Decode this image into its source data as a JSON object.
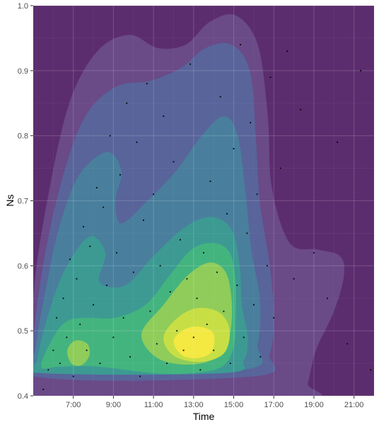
{
  "chart_data": {
    "type": "density-contour",
    "xlabel": "Time",
    "ylabel": "Ns",
    "x_range": [
      "05:00",
      "22:00"
    ],
    "y_range": [
      0.4,
      1.0
    ],
    "x_ticks": [
      "7:00",
      "9:00",
      "11:00",
      "13:00",
      "15:00",
      "17:00",
      "19:00",
      "21:00"
    ],
    "y_ticks": [
      "0.4",
      "0.5",
      "0.6",
      "0.7",
      "0.8",
      "0.9",
      "1.0"
    ],
    "grid": true,
    "legend": "none",
    "fill_levels": [
      {
        "level": 1,
        "color": "#5c2d6e"
      },
      {
        "level": 2,
        "color": "#6a4a87"
      },
      {
        "level": 3,
        "color": "#58649a"
      },
      {
        "level": 4,
        "color": "#497f9c"
      },
      {
        "level": 5,
        "color": "#3c9a93"
      },
      {
        "level": 6,
        "color": "#44b47f"
      },
      {
        "level": 7,
        "color": "#8fcc5a"
      },
      {
        "level": 8,
        "color": "#c7df45"
      },
      {
        "level": 9,
        "color": "#f4e843"
      }
    ],
    "density_peaks": [
      {
        "time": "13:15",
        "ns": 0.48
      },
      {
        "time": "07:15",
        "ns": 0.465
      }
    ],
    "points": [
      {
        "time": "05:30",
        "ns": 0.41
      },
      {
        "time": "05:45",
        "ns": 0.44
      },
      {
        "time": "06:00",
        "ns": 0.47
      },
      {
        "time": "06:10",
        "ns": 0.52
      },
      {
        "time": "06:20",
        "ns": 0.45
      },
      {
        "time": "06:30",
        "ns": 0.55
      },
      {
        "time": "06:40",
        "ns": 0.49
      },
      {
        "time": "06:50",
        "ns": 0.61
      },
      {
        "time": "07:00",
        "ns": 0.43
      },
      {
        "time": "07:10",
        "ns": 0.58
      },
      {
        "time": "07:20",
        "ns": 0.51
      },
      {
        "time": "07:30",
        "ns": 0.66
      },
      {
        "time": "07:40",
        "ns": 0.47
      },
      {
        "time": "07:50",
        "ns": 0.63
      },
      {
        "time": "08:00",
        "ns": 0.54
      },
      {
        "time": "08:10",
        "ns": 0.72
      },
      {
        "time": "08:20",
        "ns": 0.45
      },
      {
        "time": "08:30",
        "ns": 0.69
      },
      {
        "time": "08:40",
        "ns": 0.57
      },
      {
        "time": "08:50",
        "ns": 0.8
      },
      {
        "time": "09:00",
        "ns": 0.49
      },
      {
        "time": "09:10",
        "ns": 0.62
      },
      {
        "time": "09:20",
        "ns": 0.74
      },
      {
        "time": "09:30",
        "ns": 0.52
      },
      {
        "time": "09:40",
        "ns": 0.85
      },
      {
        "time": "09:50",
        "ns": 0.46
      },
      {
        "time": "10:00",
        "ns": 0.59
      },
      {
        "time": "10:10",
        "ns": 0.79
      },
      {
        "time": "10:20",
        "ns": 0.43
      },
      {
        "time": "10:30",
        "ns": 0.67
      },
      {
        "time": "10:40",
        "ns": 0.88
      },
      {
        "time": "10:50",
        "ns": 0.53
      },
      {
        "time": "11:00",
        "ns": 0.71
      },
      {
        "time": "11:10",
        "ns": 0.48
      },
      {
        "time": "11:20",
        "ns": 0.6
      },
      {
        "time": "11:30",
        "ns": 0.83
      },
      {
        "time": "11:40",
        "ns": 0.45
      },
      {
        "time": "11:50",
        "ns": 0.56
      },
      {
        "time": "12:00",
        "ns": 0.76
      },
      {
        "time": "12:10",
        "ns": 0.5
      },
      {
        "time": "12:20",
        "ns": 0.64
      },
      {
        "time": "12:30",
        "ns": 0.47
      },
      {
        "time": "12:40",
        "ns": 0.58
      },
      {
        "time": "12:50",
        "ns": 0.91
      },
      {
        "time": "13:00",
        "ns": 0.49
      },
      {
        "time": "13:10",
        "ns": 0.55
      },
      {
        "time": "13:20",
        "ns": 0.44
      },
      {
        "time": "13:30",
        "ns": 0.62
      },
      {
        "time": "13:40",
        "ns": 0.51
      },
      {
        "time": "13:50",
        "ns": 0.73
      },
      {
        "time": "14:00",
        "ns": 0.47
      },
      {
        "time": "14:10",
        "ns": 0.59
      },
      {
        "time": "14:20",
        "ns": 0.86
      },
      {
        "time": "14:30",
        "ns": 0.53
      },
      {
        "time": "14:40",
        "ns": 0.68
      },
      {
        "time": "14:50",
        "ns": 0.45
      },
      {
        "time": "15:00",
        "ns": 0.78
      },
      {
        "time": "15:10",
        "ns": 0.57
      },
      {
        "time": "15:20",
        "ns": 0.94
      },
      {
        "time": "15:30",
        "ns": 0.49
      },
      {
        "time": "15:40",
        "ns": 0.65
      },
      {
        "time": "15:50",
        "ns": 0.82
      },
      {
        "time": "16:00",
        "ns": 0.54
      },
      {
        "time": "16:10",
        "ns": 0.71
      },
      {
        "time": "16:20",
        "ns": 0.46
      },
      {
        "time": "16:40",
        "ns": 0.6
      },
      {
        "time": "16:50",
        "ns": 0.89
      },
      {
        "time": "17:00",
        "ns": 0.52
      },
      {
        "time": "17:20",
        "ns": 0.75
      },
      {
        "time": "17:40",
        "ns": 0.93
      },
      {
        "time": "18:00",
        "ns": 0.58
      },
      {
        "time": "18:20",
        "ns": 0.84
      },
      {
        "time": "19:00",
        "ns": 0.62
      },
      {
        "time": "19:40",
        "ns": 0.55
      },
      {
        "time": "20:10",
        "ns": 0.79
      },
      {
        "time": "20:40",
        "ns": 0.48
      },
      {
        "time": "21:20",
        "ns": 0.9
      },
      {
        "time": "21:50",
        "ns": 0.44
      }
    ]
  }
}
